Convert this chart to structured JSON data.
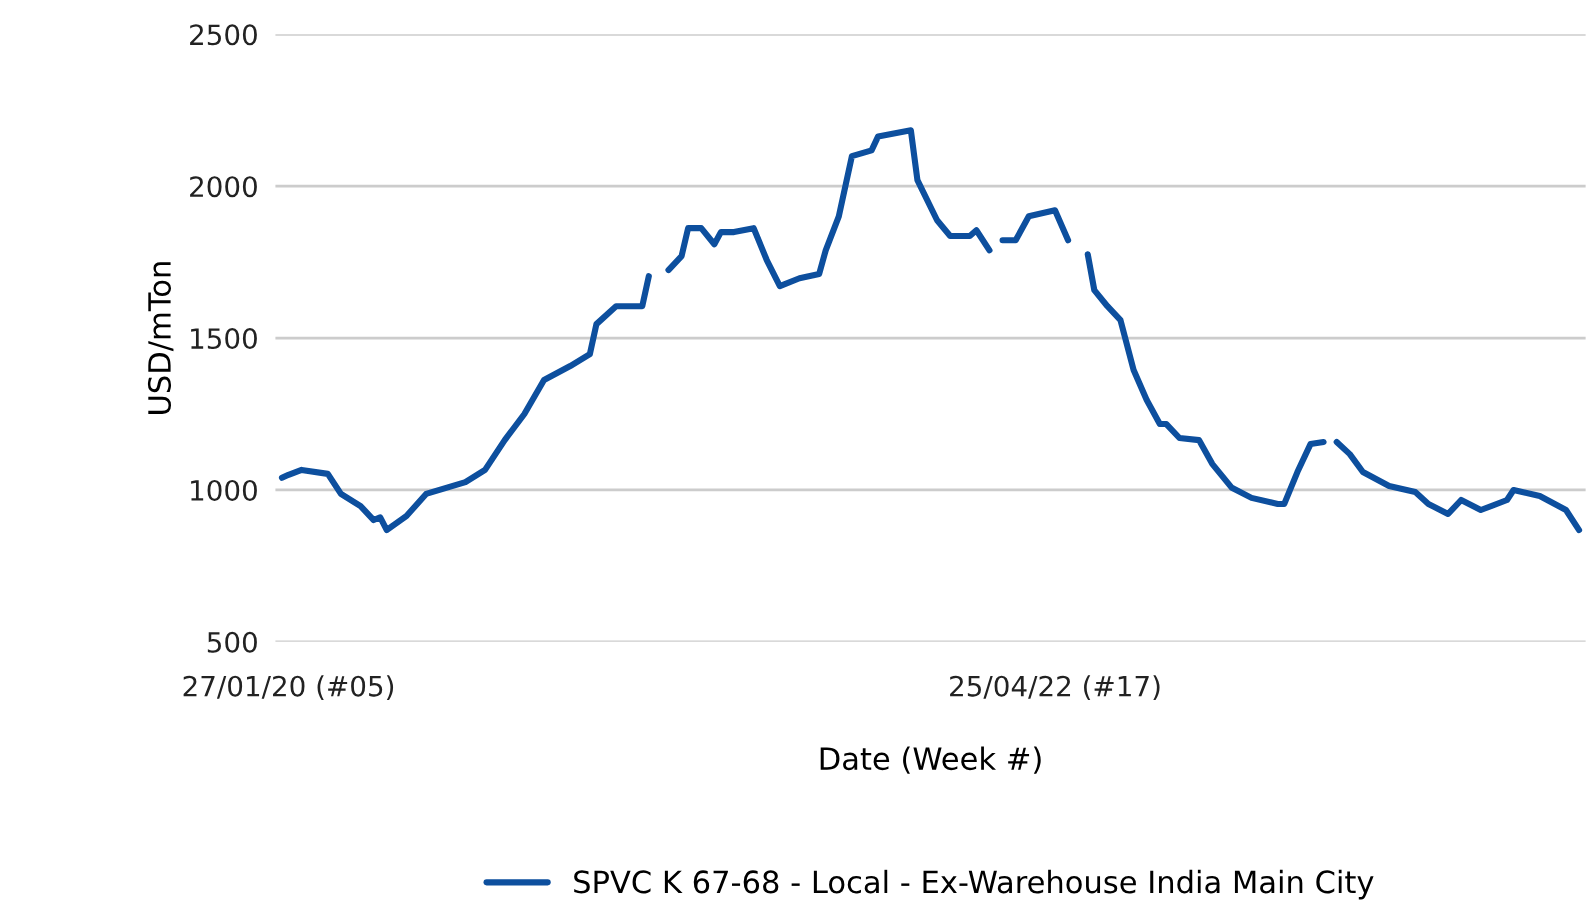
{
  "chart_data": {
    "type": "line",
    "xlabel": "Date (Week #)",
    "ylabel": "USD/mTon",
    "xlim": [
      "2020-01-13",
      "2023-11-13"
    ],
    "xticks": [
      {
        "value": "2020-01-27",
        "label": "27/01/20 (#05)"
      },
      {
        "value": "2022-04-25",
        "label": "25/04/22 (#17)"
      }
    ],
    "ylim": [
      500,
      2500
    ],
    "yticks": [
      500,
      1000,
      1500,
      2000,
      2500
    ],
    "grid": "y",
    "legend": "bottom",
    "line_style": "solid",
    "marker": "none",
    "series": [
      {
        "name": "SPVC K 67-68 - Local - Ex-Warehouse India Main City",
        "color": "#0d4f9e",
        "x": [
          "2020-01-20",
          "2020-01-27",
          "2020-02-10",
          "2020-03-09",
          "2020-03-23",
          "2020-04-13",
          "2020-04-27",
          "2020-05-04",
          "2020-05-11",
          "2020-06-01",
          "2020-06-22",
          "2020-08-03",
          "2020-08-24",
          "2020-09-14",
          "2020-10-05",
          "2020-10-26",
          "2020-11-23",
          "2020-12-14",
          "2020-12-21",
          "2021-01-11",
          "2021-02-08",
          "2021-02-15",
          "2021-02-22",
          "2021-03-08",
          "2021-03-22",
          "2021-03-29",
          "2021-04-12",
          "2021-04-26",
          "2021-05-03",
          "2021-05-17",
          "2021-06-07",
          "2021-06-21",
          "2021-07-05",
          "2021-07-26",
          "2021-08-16",
          "2021-08-23",
          "2021-09-06",
          "2021-09-20",
          "2021-10-11",
          "2021-10-18",
          "2021-11-22",
          "2021-11-29",
          "2021-12-20",
          "2022-01-03",
          "2022-01-24",
          "2022-01-31",
          "2022-02-14",
          "2022-02-21",
          "2022-02-28",
          "2022-03-14",
          "2022-03-28",
          "2022-04-25",
          "2022-05-09",
          "2022-05-16",
          "2022-05-30",
          "2022-06-06",
          "2022-06-20",
          "2022-07-04",
          "2022-07-18",
          "2022-08-01",
          "2022-08-15",
          "2022-08-22",
          "2022-09-05",
          "2022-09-26",
          "2022-10-10",
          "2022-10-31",
          "2022-11-21",
          "2022-12-19",
          "2022-12-26",
          "2023-01-09",
          "2023-01-23",
          "2023-02-06",
          "2023-02-13",
          "2023-02-20",
          "2023-03-06",
          "2023-03-20",
          "2023-04-17",
          "2023-05-15",
          "2023-05-29",
          "2023-06-19",
          "2023-07-03",
          "2023-07-24",
          "2023-08-21",
          "2023-08-28",
          "2023-09-25",
          "2023-10-23",
          "2023-11-06"
        ],
        "values": [
          1040,
          1050,
          1066,
          1053,
          987,
          947,
          901,
          910,
          868,
          914,
          987,
          1026,
          1066,
          1164,
          1250,
          1362,
          1408,
          1447,
          1546,
          1605,
          1605,
          1704,
          null,
          1724,
          1770,
          1862,
          1862,
          1809,
          1849,
          1849,
          1862,
          1757,
          1671,
          1697,
          1711,
          1789,
          1901,
          2099,
          2118,
          2164,
          2184,
          2020,
          1888,
          1836,
          1836,
          1855,
          1789,
          null,
          1822,
          1822,
          1901,
          1921,
          1822,
          null,
          1776,
          1658,
          1605,
          1559,
          1395,
          1296,
          1217,
          1217,
          1171,
          1164,
          1086,
          1007,
          974,
          954,
          954,
          1059,
          1151,
          1158,
          null,
          1158,
          1118,
          1059,
          1013,
          993,
          954,
          921,
          967,
          934,
          967,
          1000,
          980,
          934,
          868
        ]
      }
    ]
  }
}
